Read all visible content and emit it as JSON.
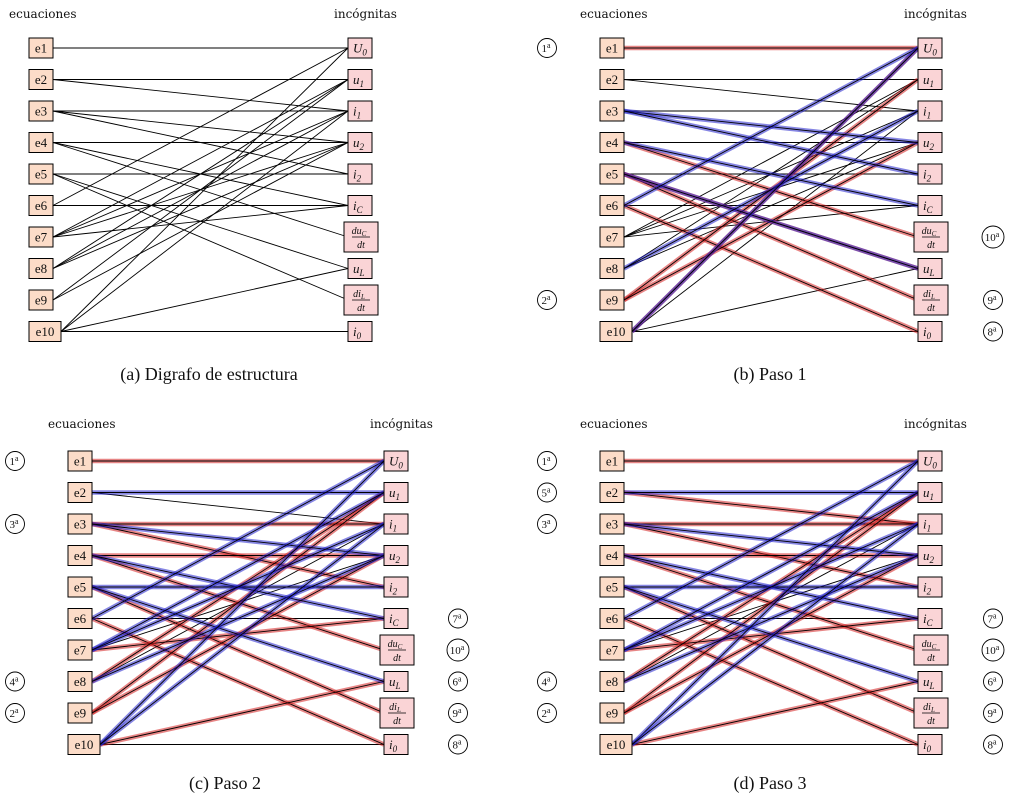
{
  "legend": {
    "edge_default": "#000000",
    "edge_red": "#d42020",
    "edge_blue": "#2222cc",
    "node_fill": "#fcdcc8",
    "node_unknown_fill": "#fad4d6"
  },
  "equations": [
    "e1",
    "e2",
    "e3",
    "e4",
    "e5",
    "e6",
    "e7",
    "e8",
    "e9",
    "e10"
  ],
  "unknowns": [
    {
      "base": "U",
      "sub": "0"
    },
    {
      "base": "u",
      "sub": "1"
    },
    {
      "base": "i",
      "sub": "1"
    },
    {
      "base": "u",
      "sub": "2"
    },
    {
      "base": "i",
      "sub": "2"
    },
    {
      "base": "i",
      "sub": "C"
    },
    {
      "frac": true,
      "num": "du",
      "num_sub": "C",
      "den": "dt"
    },
    {
      "base": "u",
      "sub": "L"
    },
    {
      "frac": true,
      "num": "di",
      "num_sub": "L",
      "den": "dt"
    },
    {
      "base": "i",
      "sub": "0"
    }
  ],
  "edges": [
    [
      1,
      1
    ],
    [
      2,
      2
    ],
    [
      2,
      3
    ],
    [
      3,
      3
    ],
    [
      3,
      4
    ],
    [
      3,
      5
    ],
    [
      4,
      4
    ],
    [
      4,
      6
    ],
    [
      4,
      7
    ],
    [
      5,
      5
    ],
    [
      5,
      8
    ],
    [
      5,
      9
    ],
    [
      6,
      1
    ],
    [
      6,
      6
    ],
    [
      7,
      2
    ],
    [
      7,
      3
    ],
    [
      7,
      4
    ],
    [
      7,
      6
    ],
    [
      8,
      2
    ],
    [
      8,
      3
    ],
    [
      8,
      4
    ],
    [
      9,
      2
    ],
    [
      9,
      4
    ],
    [
      10,
      1
    ],
    [
      10,
      3
    ],
    [
      10,
      8
    ],
    [
      10,
      10
    ]
  ],
  "panels": [
    {
      "id": "a",
      "caption": "(a) Digrafo de estructura",
      "header_left": "ecuaciones",
      "header_right": "incógnitas",
      "red": [],
      "blue": [],
      "left_order": [],
      "right_order": []
    },
    {
      "id": "b",
      "caption": "(b) Paso 1",
      "header_left": "ecuaciones",
      "header_right": "incógnitas",
      "red": [
        [
          1,
          1
        ],
        [
          4,
          7
        ],
        [
          5,
          9
        ],
        [
          5,
          8
        ],
        [
          6,
          10
        ],
        [
          9,
          2
        ],
        [
          9,
          4
        ],
        [
          10,
          1
        ]
      ],
      "blue": [
        [
          3,
          4
        ],
        [
          3,
          5
        ],
        [
          4,
          6
        ],
        [
          5,
          8
        ],
        [
          6,
          1
        ],
        [
          8,
          3
        ],
        [
          10,
          1
        ]
      ],
      "left_order": [
        {
          "row": 1,
          "num": "1",
          "sup": "a"
        },
        {
          "row": 9,
          "num": "2",
          "sup": "a"
        }
      ],
      "right_order": [
        {
          "row": 7,
          "num": "10",
          "sup": "a"
        },
        {
          "row": 9,
          "num": "9",
          "sup": "a"
        },
        {
          "row": 10,
          "num": "8",
          "sup": "a"
        }
      ]
    },
    {
      "id": "c",
      "caption": "(c) Paso 2",
      "header_left": "ecuaciones",
      "header_right": "incógnitas",
      "red": [
        [
          1,
          1
        ],
        [
          3,
          3
        ],
        [
          3,
          5
        ],
        [
          4,
          4
        ],
        [
          4,
          7
        ],
        [
          5,
          9
        ],
        [
          6,
          10
        ],
        [
          7,
          6
        ],
        [
          8,
          2
        ],
        [
          9,
          2
        ],
        [
          9,
          4
        ],
        [
          10,
          8
        ]
      ],
      "blue": [
        [
          2,
          2
        ],
        [
          3,
          4
        ],
        [
          4,
          6
        ],
        [
          5,
          5
        ],
        [
          5,
          8
        ],
        [
          6,
          1
        ],
        [
          7,
          2
        ],
        [
          7,
          3
        ],
        [
          8,
          4
        ],
        [
          10,
          1
        ],
        [
          10,
          3
        ]
      ],
      "left_order": [
        {
          "row": 1,
          "num": "1",
          "sup": "a"
        },
        {
          "row": 3,
          "num": "3",
          "sup": "a"
        },
        {
          "row": 8,
          "num": "4",
          "sup": "a"
        },
        {
          "row": 9,
          "num": "2",
          "sup": "a"
        }
      ],
      "right_order": [
        {
          "row": 6,
          "num": "7",
          "sup": "a"
        },
        {
          "row": 7,
          "num": "10",
          "sup": "a"
        },
        {
          "row": 8,
          "num": "6",
          "sup": "a"
        },
        {
          "row": 9,
          "num": "9",
          "sup": "a"
        },
        {
          "row": 10,
          "num": "8",
          "sup": "a"
        }
      ]
    },
    {
      "id": "d",
      "caption": "(d) Paso 3",
      "header_left": "ecuaciones",
      "header_right": "incógnitas",
      "red": [
        [
          1,
          1
        ],
        [
          2,
          3
        ],
        [
          3,
          3
        ],
        [
          3,
          5
        ],
        [
          4,
          4
        ],
        [
          4,
          7
        ],
        [
          5,
          9
        ],
        [
          6,
          10
        ],
        [
          7,
          6
        ],
        [
          8,
          2
        ],
        [
          9,
          2
        ],
        [
          9,
          4
        ],
        [
          10,
          8
        ]
      ],
      "blue": [
        [
          2,
          2
        ],
        [
          3,
          4
        ],
        [
          4,
          6
        ],
        [
          5,
          5
        ],
        [
          5,
          8
        ],
        [
          6,
          1
        ],
        [
          7,
          2
        ],
        [
          7,
          3
        ],
        [
          8,
          4
        ],
        [
          10,
          1
        ],
        [
          10,
          3
        ]
      ],
      "left_order": [
        {
          "row": 1,
          "num": "1",
          "sup": "a"
        },
        {
          "row": 2,
          "num": "5",
          "sup": "a"
        },
        {
          "row": 3,
          "num": "3",
          "sup": "a"
        },
        {
          "row": 8,
          "num": "4",
          "sup": "a"
        },
        {
          "row": 9,
          "num": "2",
          "sup": "a"
        }
      ],
      "right_order": [
        {
          "row": 6,
          "num": "7",
          "sup": "a"
        },
        {
          "row": 7,
          "num": "10",
          "sup": "a"
        },
        {
          "row": 8,
          "num": "6",
          "sup": "a"
        },
        {
          "row": 9,
          "num": "9",
          "sup": "a"
        },
        {
          "row": 10,
          "num": "8",
          "sup": "a"
        }
      ]
    }
  ]
}
